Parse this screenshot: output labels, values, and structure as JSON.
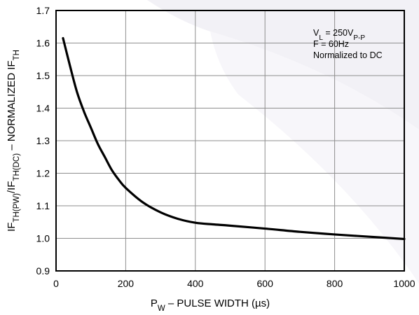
{
  "chart_data": {
    "type": "line",
    "ylabel": {
      "parts": [
        {
          "t": "IF"
        },
        {
          "t": "TH(PW)",
          "sub": true
        },
        {
          "t": "/IF"
        },
        {
          "t": "TH(DC)",
          "sub": true
        },
        {
          "t": " – NORMALIZED IF"
        },
        {
          "t": "TH",
          "sub": true
        }
      ]
    },
    "xlabel": {
      "parts": [
        {
          "t": "P"
        },
        {
          "t": "W",
          "sub": true
        },
        {
          "t": " – PULSE WIDTH (µs)"
        }
      ]
    },
    "xlim": [
      0,
      1000
    ],
    "ylim": [
      0.9,
      1.7
    ],
    "x_ticks": [
      0,
      200,
      400,
      600,
      800,
      1000
    ],
    "x_tick_labels": [
      "0",
      "200",
      "400",
      "600",
      "800",
      "1000"
    ],
    "y_ticks": [
      0.9,
      1.0,
      1.1,
      1.2,
      1.3,
      1.4,
      1.5,
      1.6,
      1.7
    ],
    "y_tick_labels": [
      "0.9",
      "1.0",
      "1.1",
      "1.2",
      "1.3",
      "1.4",
      "1.5",
      "1.6",
      "1.7"
    ],
    "grid": true,
    "annotation": {
      "lines": [
        [
          {
            "t": "V"
          },
          {
            "t": "L",
            "sub": true
          },
          {
            "t": " = 250V"
          },
          {
            "t": "P-P",
            "sub": true
          }
        ],
        [
          {
            "t": "F = 60Hz"
          }
        ],
        [
          {
            "t": "Normalized to DC"
          }
        ]
      ]
    },
    "series": [
      {
        "x": [
          20,
          40,
          60,
          80,
          100,
          120,
          140,
          160,
          180,
          200,
          250,
          300,
          350,
          400,
          450,
          500,
          600,
          700,
          800,
          900,
          1000
        ],
        "y": [
          1.615,
          1.53,
          1.45,
          1.39,
          1.34,
          1.29,
          1.25,
          1.21,
          1.18,
          1.155,
          1.11,
          1.08,
          1.06,
          1.048,
          1.043,
          1.039,
          1.03,
          1.02,
          1.012,
          1.005,
          0.998
        ]
      }
    ]
  }
}
